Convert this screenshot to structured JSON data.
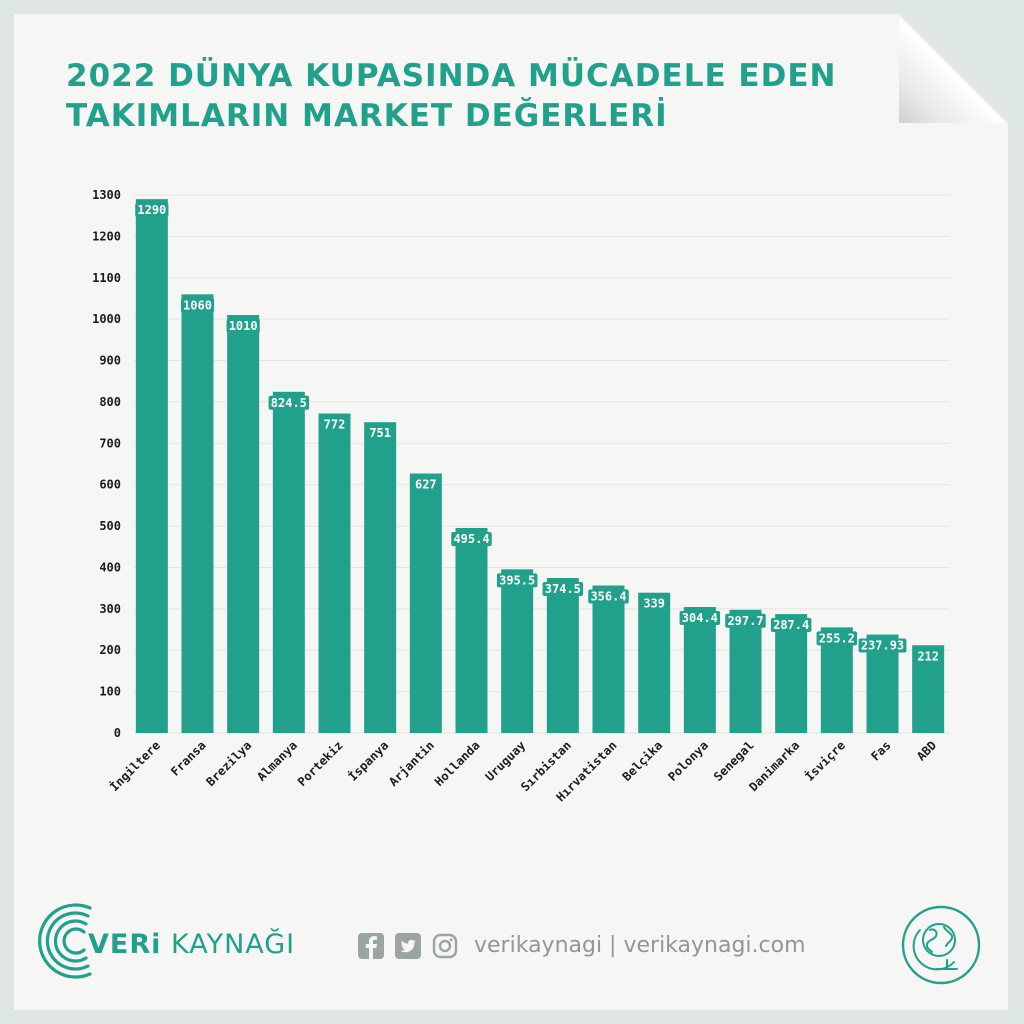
{
  "title_line1": "2022 DÜNYA KUPASINDA MÜCADELE EDEN",
  "title_line2": "TAKIMLARIN MARKET DEĞERLERİ",
  "colors": {
    "accent": "#21a18b",
    "text": "#1c1c1c",
    "grid": "#e4e4e4"
  },
  "chart_data": {
    "type": "bar",
    "title": "2022 DÜNYA KUPASINDA MÜCADELE EDEN TAKIMLARIN MARKET DEĞERLERİ",
    "xlabel": "",
    "ylabel": "",
    "ylim": [
      0,
      1300
    ],
    "yticks": [
      0,
      100,
      200,
      300,
      400,
      500,
      600,
      700,
      800,
      900,
      1000,
      1100,
      1200,
      1300
    ],
    "grid": true,
    "categories": [
      "İngiltere",
      "Fransa",
      "Brezilya",
      "Almanya",
      "Portekiz",
      "İspanya",
      "Arjantin",
      "Hollanda",
      "Uruguay",
      "Sırbistan",
      "Hırvatistan",
      "Belçika",
      "Polonya",
      "Senegal",
      "Danimarka",
      "İsviçre",
      "Fas",
      "ABD"
    ],
    "values": [
      1290,
      1060,
      1010,
      824.5,
      772,
      751,
      627,
      495.4,
      395.5,
      374.5,
      356.4,
      339,
      304.4,
      297.7,
      287.4,
      255.2,
      237.93,
      212
    ],
    "value_labels": [
      "1290",
      "1060",
      "1010",
      "824.5",
      "772",
      "751",
      "627",
      "495.4",
      "395.5",
      "374.5",
      "356.4",
      "339",
      "304.4",
      "297.7",
      "287.4",
      "255.2",
      "237.93",
      "212"
    ]
  },
  "footer": {
    "brand_bold": "VERi",
    "brand_rest": " KAYNAĞI",
    "social_handle": "verikaynagi | verikaynagi.com",
    "icons": [
      "facebook-icon",
      "twitter-icon",
      "instagram-icon",
      "globe-icon"
    ]
  }
}
